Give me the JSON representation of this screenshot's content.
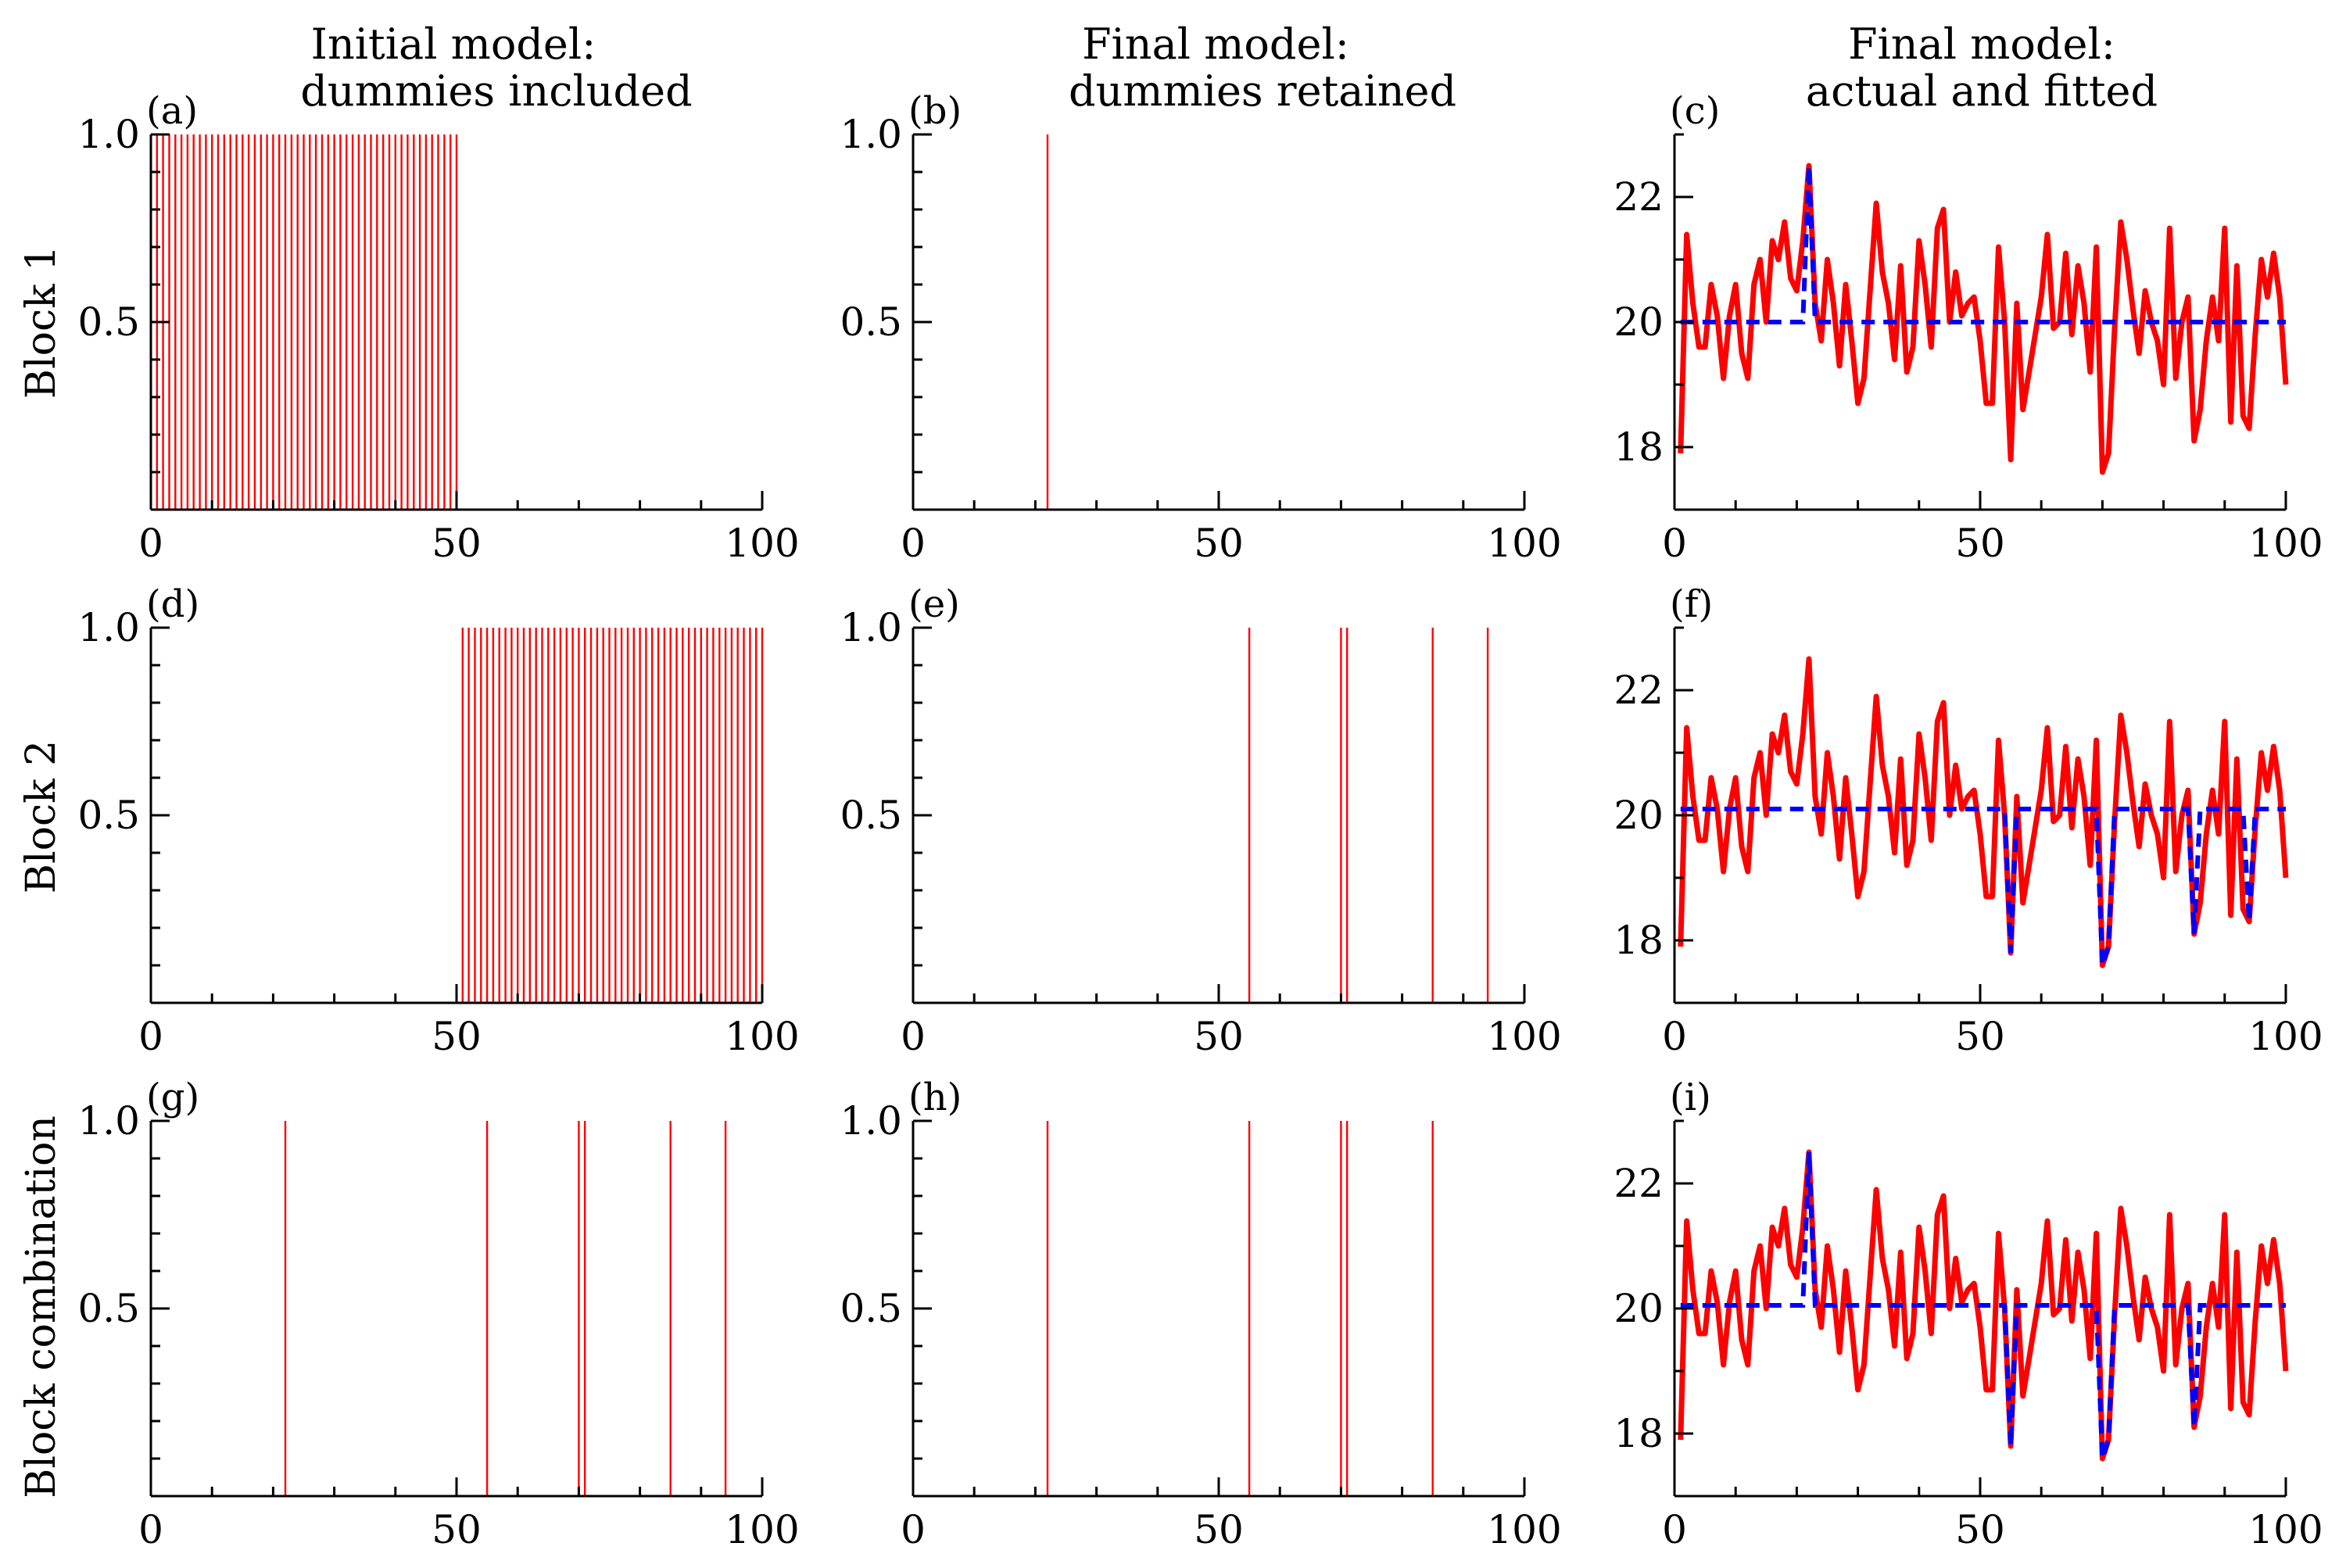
{
  "column_titles": [
    [
      "Initial model:",
      "dummies included"
    ],
    [
      "Final model:",
      "dummies retained"
    ],
    [
      "Final model:",
      "actual and fitted"
    ]
  ],
  "row_labels": [
    "Block 1",
    "Block 2",
    "Block combination"
  ],
  "colors": {
    "indicator": "#ff0000",
    "actual": "#ff0000",
    "fitted": "#0000ff"
  },
  "chart_data": [
    {
      "panel": "(a)",
      "type": "bar",
      "xlim": [
        0,
        100
      ],
      "ylim": [
        0,
        1.0
      ],
      "xticks": [
        0,
        50,
        100
      ],
      "yticks": [
        0.5,
        1.0
      ],
      "yticklabels": [
        "0.5",
        "1.0"
      ],
      "spikes": {
        "from": 1,
        "to": 50,
        "value": 1.0
      }
    },
    {
      "panel": "(b)",
      "type": "bar",
      "xlim": [
        0,
        100
      ],
      "ylim": [
        0,
        1.0
      ],
      "xticks": [
        0,
        50,
        100
      ],
      "yticks": [
        0.5,
        1.0
      ],
      "yticklabels": [
        "0.5",
        "1.0"
      ],
      "spikes": {
        "at": [
          22
        ],
        "value": 1.0
      }
    },
    {
      "panel": "(c)",
      "type": "line",
      "xlim": [
        0,
        100
      ],
      "ylim": [
        17,
        23
      ],
      "xticks": [
        0,
        50,
        100
      ],
      "yticks": [
        18,
        20,
        22
      ],
      "yticklabels": [
        "18",
        "20",
        "22"
      ],
      "fitted": {
        "base": 20.0,
        "dips": [
          22
        ]
      }
    },
    {
      "panel": "(d)",
      "type": "bar",
      "xlim": [
        0,
        100
      ],
      "ylim": [
        0,
        1.0
      ],
      "xticks": [
        0,
        50,
        100
      ],
      "yticks": [
        0.5,
        1.0
      ],
      "yticklabels": [
        "0.5",
        "1.0"
      ],
      "spikes": {
        "from": 51,
        "to": 100,
        "value": 1.0
      }
    },
    {
      "panel": "(e)",
      "type": "bar",
      "xlim": [
        0,
        100
      ],
      "ylim": [
        0,
        1.0
      ],
      "xticks": [
        0,
        50,
        100
      ],
      "yticks": [
        0.5,
        1.0
      ],
      "yticklabels": [
        "0.5",
        "1.0"
      ],
      "spikes": {
        "at": [
          55,
          70,
          71,
          85,
          94
        ],
        "value": 1.0
      }
    },
    {
      "panel": "(f)",
      "type": "line",
      "xlim": [
        0,
        100
      ],
      "ylim": [
        17,
        23
      ],
      "xticks": [
        0,
        50,
        100
      ],
      "yticks": [
        18,
        20,
        22
      ],
      "yticklabels": [
        "18",
        "20",
        "22"
      ],
      "fitted": {
        "base": 20.1,
        "dips": [
          55,
          70,
          71,
          85,
          94
        ]
      }
    },
    {
      "panel": "(g)",
      "type": "bar",
      "xlim": [
        0,
        100
      ],
      "ylim": [
        0,
        1.0
      ],
      "xticks": [
        0,
        50,
        100
      ],
      "yticks": [
        0.5,
        1.0
      ],
      "yticklabels": [
        "0.5",
        "1.0"
      ],
      "spikes": {
        "at": [
          22,
          55,
          70,
          71,
          85,
          94
        ],
        "value": 1.0
      }
    },
    {
      "panel": "(h)",
      "type": "bar",
      "xlim": [
        0,
        100
      ],
      "ylim": [
        0,
        1.0
      ],
      "xticks": [
        0,
        50,
        100
      ],
      "yticks": [
        0.5,
        1.0
      ],
      "yticklabels": [
        "0.5",
        "1.0"
      ],
      "spikes": {
        "at": [
          22,
          55,
          70,
          71,
          85
        ],
        "value": 1.0
      }
    },
    {
      "panel": "(i)",
      "type": "line",
      "xlim": [
        0,
        100
      ],
      "ylim": [
        17,
        23
      ],
      "xticks": [
        0,
        50,
        100
      ],
      "yticks": [
        18,
        20,
        22
      ],
      "yticklabels": [
        "18",
        "20",
        "22"
      ],
      "fitted": {
        "base": 20.05,
        "dips": [
          22,
          55,
          70,
          71,
          85
        ]
      }
    }
  ],
  "series_actual": {
    "x": [
      1,
      2,
      3,
      4,
      5,
      6,
      7,
      8,
      9,
      10,
      11,
      12,
      13,
      14,
      15,
      16,
      17,
      18,
      19,
      20,
      21,
      22,
      23,
      24,
      25,
      26,
      27,
      28,
      29,
      30,
      31,
      32,
      33,
      34,
      35,
      36,
      37,
      38,
      39,
      40,
      41,
      42,
      43,
      44,
      45,
      46,
      47,
      48,
      49,
      50,
      51,
      52,
      53,
      54,
      55,
      56,
      57,
      58,
      59,
      60,
      61,
      62,
      63,
      64,
      65,
      66,
      67,
      68,
      69,
      70,
      71,
      72,
      73,
      74,
      75,
      76,
      77,
      78,
      79,
      80,
      81,
      82,
      83,
      84,
      85,
      86,
      87,
      88,
      89,
      90,
      91,
      92,
      93,
      94,
      95,
      96,
      97,
      98,
      99,
      100
    ],
    "y": [
      17.9,
      21.4,
      20.3,
      19.6,
      19.6,
      20.6,
      20.1,
      19.1,
      20.1,
      20.6,
      19.5,
      19.1,
      20.6,
      21.0,
      20.0,
      21.3,
      21.0,
      21.6,
      20.7,
      20.5,
      21.3,
      22.5,
      20.3,
      19.7,
      21.0,
      20.3,
      19.3,
      20.6,
      19.7,
      18.7,
      19.1,
      20.5,
      21.9,
      20.8,
      20.3,
      19.4,
      20.9,
      19.2,
      19.6,
      21.3,
      20.6,
      19.6,
      21.5,
      21.8,
      20.0,
      20.8,
      20.1,
      20.3,
      20.4,
      19.7,
      18.7,
      18.7,
      21.2,
      20.0,
      17.8,
      20.3,
      18.6,
      19.2,
      19.8,
      20.4,
      21.4,
      19.9,
      20.0,
      21.1,
      19.8,
      20.9,
      20.3,
      19.2,
      21.2,
      17.6,
      17.9,
      19.9,
      21.6,
      21.0,
      20.2,
      19.5,
      20.5,
      20.0,
      19.7,
      19.0,
      21.5,
      19.1,
      20.0,
      20.4,
      18.1,
      18.6,
      19.7,
      20.4,
      19.7,
      21.5,
      18.4,
      20.9,
      18.5,
      18.3,
      19.8,
      21.0,
      20.4,
      21.1,
      20.4,
      19.0
    ]
  }
}
